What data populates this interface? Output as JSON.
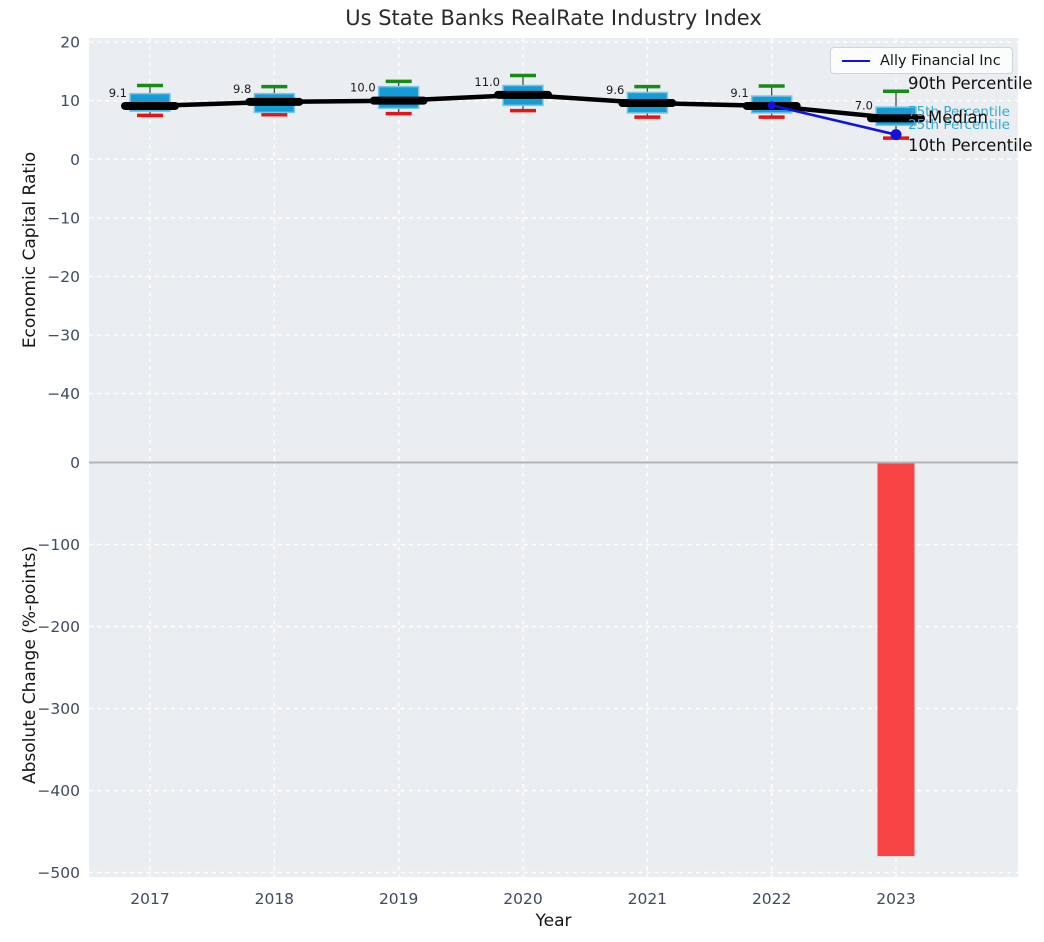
{
  "title": "Us State Banks RealRate Industry Index",
  "legend": {
    "label": "Ally Financial Inc"
  },
  "chart_data": {
    "type": "boxplot-line-bar-combo",
    "title": "Us State Banks RealRate Industry Index",
    "xlabel": "Year",
    "categories": [
      "2017",
      "2018",
      "2019",
      "2020",
      "2021",
      "2022",
      "2023"
    ],
    "grid": true,
    "legend_position": "upper right",
    "top_panel": {
      "ylabel": "Economic Capital Ratio",
      "ylim": [
        -51,
        20.7
      ],
      "yticks": [
        20,
        10,
        0,
        -10,
        -20,
        -30,
        -40
      ],
      "boxplots": [
        {
          "year": "2017",
          "p90": 12.6,
          "q3": 11.2,
          "median": 9.1,
          "q1": 8.2,
          "p10": 7.5,
          "label": "9.1"
        },
        {
          "year": "2018",
          "p90": 12.4,
          "q3": 11.2,
          "median": 9.8,
          "q1": 8.0,
          "p10": 7.6,
          "label": "9.8"
        },
        {
          "year": "2019",
          "p90": 13.3,
          "q3": 12.4,
          "median": 10.0,
          "q1": 8.7,
          "p10": 7.8,
          "label": "10.0"
        },
        {
          "year": "2020",
          "p90": 14.3,
          "q3": 12.6,
          "median": 11.0,
          "q1": 9.2,
          "p10": 8.3,
          "label": "11.0"
        },
        {
          "year": "2021",
          "p90": 12.4,
          "q3": 11.4,
          "median": 9.6,
          "q1": 7.9,
          "p10": 7.2,
          "label": "9.6"
        },
        {
          "year": "2022",
          "p90": 12.5,
          "q3": 10.8,
          "median": 9.1,
          "q1": 7.9,
          "p10": 7.2,
          "label": "9.1"
        },
        {
          "year": "2023",
          "p90": 11.6,
          "q3": 8.9,
          "median": 7.0,
          "q1": 5.8,
          "p10": 3.6,
          "label": "7.0"
        }
      ],
      "industry_median_series": {
        "name": "Industry Median",
        "values": [
          9.1,
          9.8,
          10.0,
          11.0,
          9.6,
          9.1,
          7.0
        ]
      },
      "company_series": {
        "name": "Ally Financial Inc",
        "points": [
          {
            "x": "2022",
            "y": 9.2
          },
          {
            "x": "2023",
            "y": 4.2
          }
        ]
      },
      "annotations": {
        "p90": "90th Percentile",
        "p75": "75th Percentile",
        "median": "Median",
        "p25": "25th Percentile",
        "p10": "10th Percentile"
      }
    },
    "bottom_panel": {
      "ylabel": "Absolute Change (%-points)",
      "ylim": [
        -505.5,
        5.5
      ],
      "yticks": [
        0,
        -100,
        -200,
        -300,
        -400,
        -500
      ],
      "bars": [
        {
          "x": "2023",
          "value": -480
        }
      ]
    }
  },
  "colors": {
    "plot_bg": "#eaeef0",
    "grid": "#ffffff",
    "box_fill": "#169cd4",
    "box_edge": "#7ac6e4",
    "median_bar": "#000000",
    "industry_line": "#000000",
    "company_line": "#1212dd",
    "whisker_line": "#4a4a4a",
    "cap_high": "#178a17",
    "cap_low": "#e31515",
    "bar_negative": "#f92c2c",
    "zero_line": "#b5b5b5",
    "tick_text": "#3e4b60",
    "value_label_text": "#1a1a1a",
    "annotation_blue": "#35a8d5",
    "annotation_dark": "#101010"
  }
}
